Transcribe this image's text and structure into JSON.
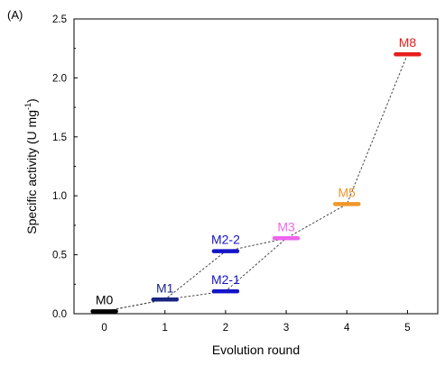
{
  "panel_label": "(A)",
  "chart_data": {
    "type": "scatter",
    "xlabel": "Evolution round",
    "ylabel": "Specific activity (U mg",
    "ylabel_sup": "-1",
    "ylabel_close": ")",
    "xlim": [
      -0.5,
      5.5
    ],
    "ylim": [
      0,
      2.5
    ],
    "xticks": [
      "0",
      "1",
      "2",
      "3",
      "4",
      "5"
    ],
    "yticks": [
      "0.0",
      "0.5",
      "1.0",
      "1.5",
      "2.0",
      "2.5"
    ],
    "grid": false,
    "points": [
      {
        "label": "M0",
        "x": 0,
        "y": 0.02,
        "color": "#000000"
      },
      {
        "label": "M1",
        "x": 1,
        "y": 0.12,
        "color": "#1a2580"
      },
      {
        "label": "M2-2",
        "x": 2,
        "y": 0.53,
        "color": "#1414c8"
      },
      {
        "label": "M2-1",
        "x": 2,
        "y": 0.19,
        "color": "#1414c8"
      },
      {
        "label": "M3",
        "x": 3,
        "y": 0.64,
        "color": "#ee66ee"
      },
      {
        "label": "M5",
        "x": 4,
        "y": 0.93,
        "color": "#f0962a"
      },
      {
        "label": "M8",
        "x": 5,
        "y": 2.2,
        "color": "#e81c1c"
      }
    ],
    "paths": [
      [
        "M0",
        "M1",
        "M2-2",
        "M3",
        "M5",
        "M8"
      ],
      [
        "M0",
        "M1",
        "M2-1",
        "M3"
      ]
    ]
  }
}
